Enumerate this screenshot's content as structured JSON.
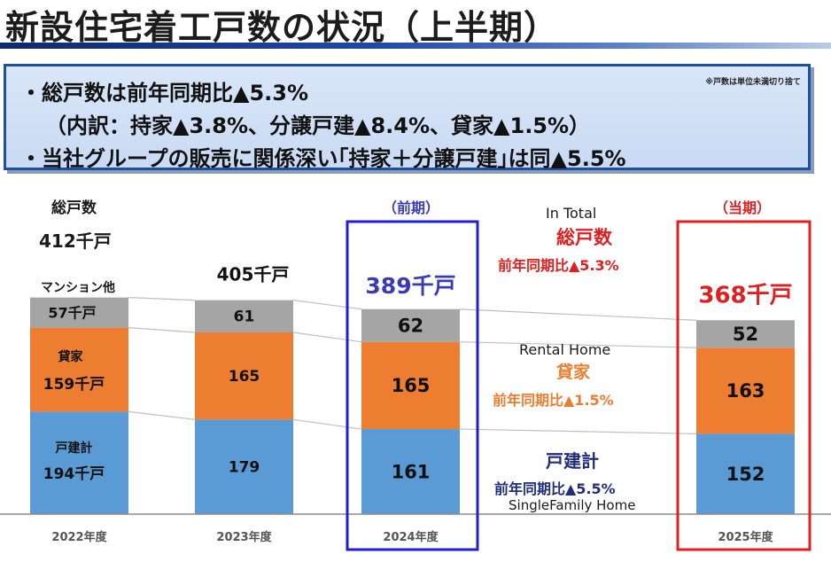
{
  "title": "新設住宅着工戸数の状況（上半期）",
  "summary": {
    "line1": "・総戸数は前年同期比▲5.3%",
    "line2": "（内訳：持家▲3.8%、分譲戸建▲8.4%、貸家▲1.5%）",
    "line3": "・当社グループの販売に関係深い｢持家＋分譲戸建｣は同▲5.5%",
    "note": "※戸数は単位未満切り捨て"
  },
  "labels": {
    "total_jp": "総戸数",
    "first_total": "412千戸",
    "mansion_label": "マンション他",
    "mansion_value": "57千戸",
    "rental_label": "貸家",
    "rental_value": "159千戸",
    "detached_label": "戸建計",
    "detached_value": "194千戸",
    "prev_period": "（前期）",
    "curr_period": "（当期）",
    "in_total_en": "In Total",
    "in_total_jp": "総戸数",
    "in_total_yoy": "前年同期比▲5.3%",
    "rental_en": "Rental Home",
    "rental_jp": "貸家",
    "rental_yoy": "前年同期比▲1.5%",
    "detached_jp": "戸建計",
    "detached_yoy": "前年同期比▲5.5%",
    "detached_en": "SingleFamily Home"
  },
  "colors": {
    "detached": "#5b9bd5",
    "rental": "#ed7d31",
    "mansion": "#a5a5a5",
    "prev_box": "#1f1fd0",
    "curr_box": "#e01f1f",
    "red_text": "#e01f1f",
    "blue_text": "#3a3ab8",
    "navy_text": "#1f2d7a"
  },
  "chart_data": {
    "type": "bar",
    "stacked": true,
    "categories": [
      "2022年度",
      "2023年度",
      "2024年度",
      "2025年度"
    ],
    "series": [
      {
        "name": "戸建計",
        "values": [
          194,
          179,
          161,
          152
        ]
      },
      {
        "name": "貸家",
        "values": [
          159,
          165,
          165,
          163
        ]
      },
      {
        "name": "マンション他",
        "values": [
          57,
          61,
          62,
          52
        ]
      }
    ],
    "totals": [
      "412千戸",
      "405千戸",
      "389千戸",
      "368千戸"
    ],
    "value_labels": [
      [
        "194千戸",
        "159千戸",
        "57千戸"
      ],
      [
        "179",
        "165",
        "61"
      ],
      [
        "161",
        "165",
        "62"
      ],
      [
        "152",
        "163",
        "52"
      ]
    ],
    "ylim": [
      0,
      412
    ]
  }
}
